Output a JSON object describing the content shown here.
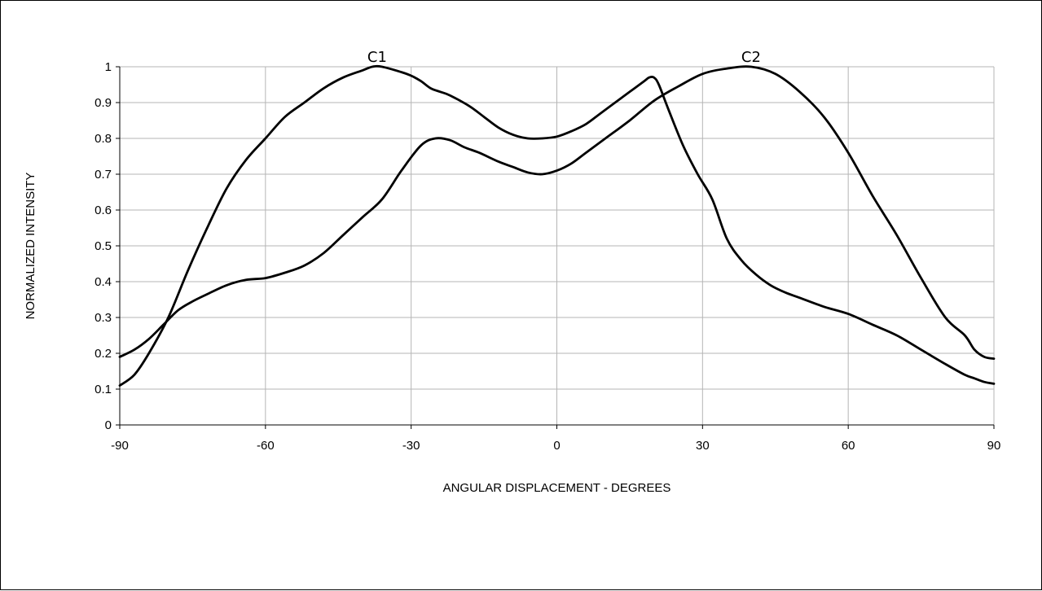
{
  "chart_data": {
    "type": "line",
    "title": "",
    "xlabel": "ANGULAR DISPLACEMENT - DEGREES",
    "ylabel": "NORMALIZED INTENSITY",
    "xlim": [
      -90,
      90
    ],
    "ylim": [
      0,
      1
    ],
    "xticks": [
      -90,
      -60,
      -30,
      0,
      30,
      60,
      90
    ],
    "yticks": [
      0,
      0.1,
      0.2,
      0.3,
      0.4,
      0.5,
      0.6,
      0.7,
      0.8,
      0.9,
      1
    ],
    "grid": true,
    "legend": "none",
    "annotations": [
      {
        "text": "C1",
        "x": -37,
        "y": 1.0
      },
      {
        "text": "C2",
        "x": 40,
        "y": 1.0
      }
    ],
    "series": [
      {
        "x": [
          -90,
          -87,
          -84,
          -80,
          -76,
          -72,
          -68,
          -64,
          -60,
          -56,
          -52,
          -48,
          -44,
          -40,
          -38,
          -36,
          -32,
          -30,
          -28,
          -26,
          -24,
          -22,
          -18,
          -15,
          -12,
          -9,
          -6,
          -3,
          0,
          3,
          6,
          9,
          12,
          15,
          18,
          19,
          20,
          21,
          23,
          26,
          29,
          32,
          35,
          38,
          41,
          44,
          47,
          50,
          55,
          60,
          65,
          70,
          75,
          80,
          84,
          86,
          88,
          90
        ],
        "y": [
          0.11,
          0.14,
          0.2,
          0.3,
          0.43,
          0.55,
          0.66,
          0.74,
          0.8,
          0.86,
          0.9,
          0.94,
          0.97,
          0.99,
          1.0,
          1.0,
          0.985,
          0.975,
          0.96,
          0.94,
          0.93,
          0.92,
          0.89,
          0.86,
          0.83,
          0.81,
          0.8,
          0.8,
          0.805,
          0.82,
          0.84,
          0.87,
          0.9,
          0.93,
          0.96,
          0.97,
          0.97,
          0.95,
          0.88,
          0.78,
          0.7,
          0.63,
          0.52,
          0.46,
          0.42,
          0.39,
          0.37,
          0.355,
          0.33,
          0.31,
          0.28,
          0.25,
          0.21,
          0.17,
          0.14,
          0.13,
          0.12,
          0.115
        ]
      },
      {
        "x": [
          -90,
          -87,
          -84,
          -81,
          -78,
          -75,
          -72,
          -68,
          -64,
          -60,
          -56,
          -52,
          -48,
          -44,
          -40,
          -36,
          -32,
          -28,
          -25,
          -22,
          -19,
          -16,
          -12,
          -9,
          -6,
          -3,
          0,
          3,
          6,
          10,
          15,
          20,
          25,
          30,
          35,
          40,
          45,
          50,
          55,
          60,
          65,
          70,
          75,
          80,
          84,
          86,
          88,
          90
        ],
        "y": [
          0.19,
          0.21,
          0.24,
          0.28,
          0.32,
          0.345,
          0.365,
          0.39,
          0.405,
          0.41,
          0.425,
          0.445,
          0.48,
          0.53,
          0.58,
          0.63,
          0.71,
          0.78,
          0.8,
          0.795,
          0.775,
          0.76,
          0.735,
          0.72,
          0.705,
          0.7,
          0.71,
          0.73,
          0.76,
          0.8,
          0.85,
          0.905,
          0.945,
          0.98,
          0.995,
          1.0,
          0.98,
          0.93,
          0.86,
          0.76,
          0.64,
          0.53,
          0.41,
          0.3,
          0.25,
          0.21,
          0.19,
          0.185
        ]
      }
    ]
  }
}
